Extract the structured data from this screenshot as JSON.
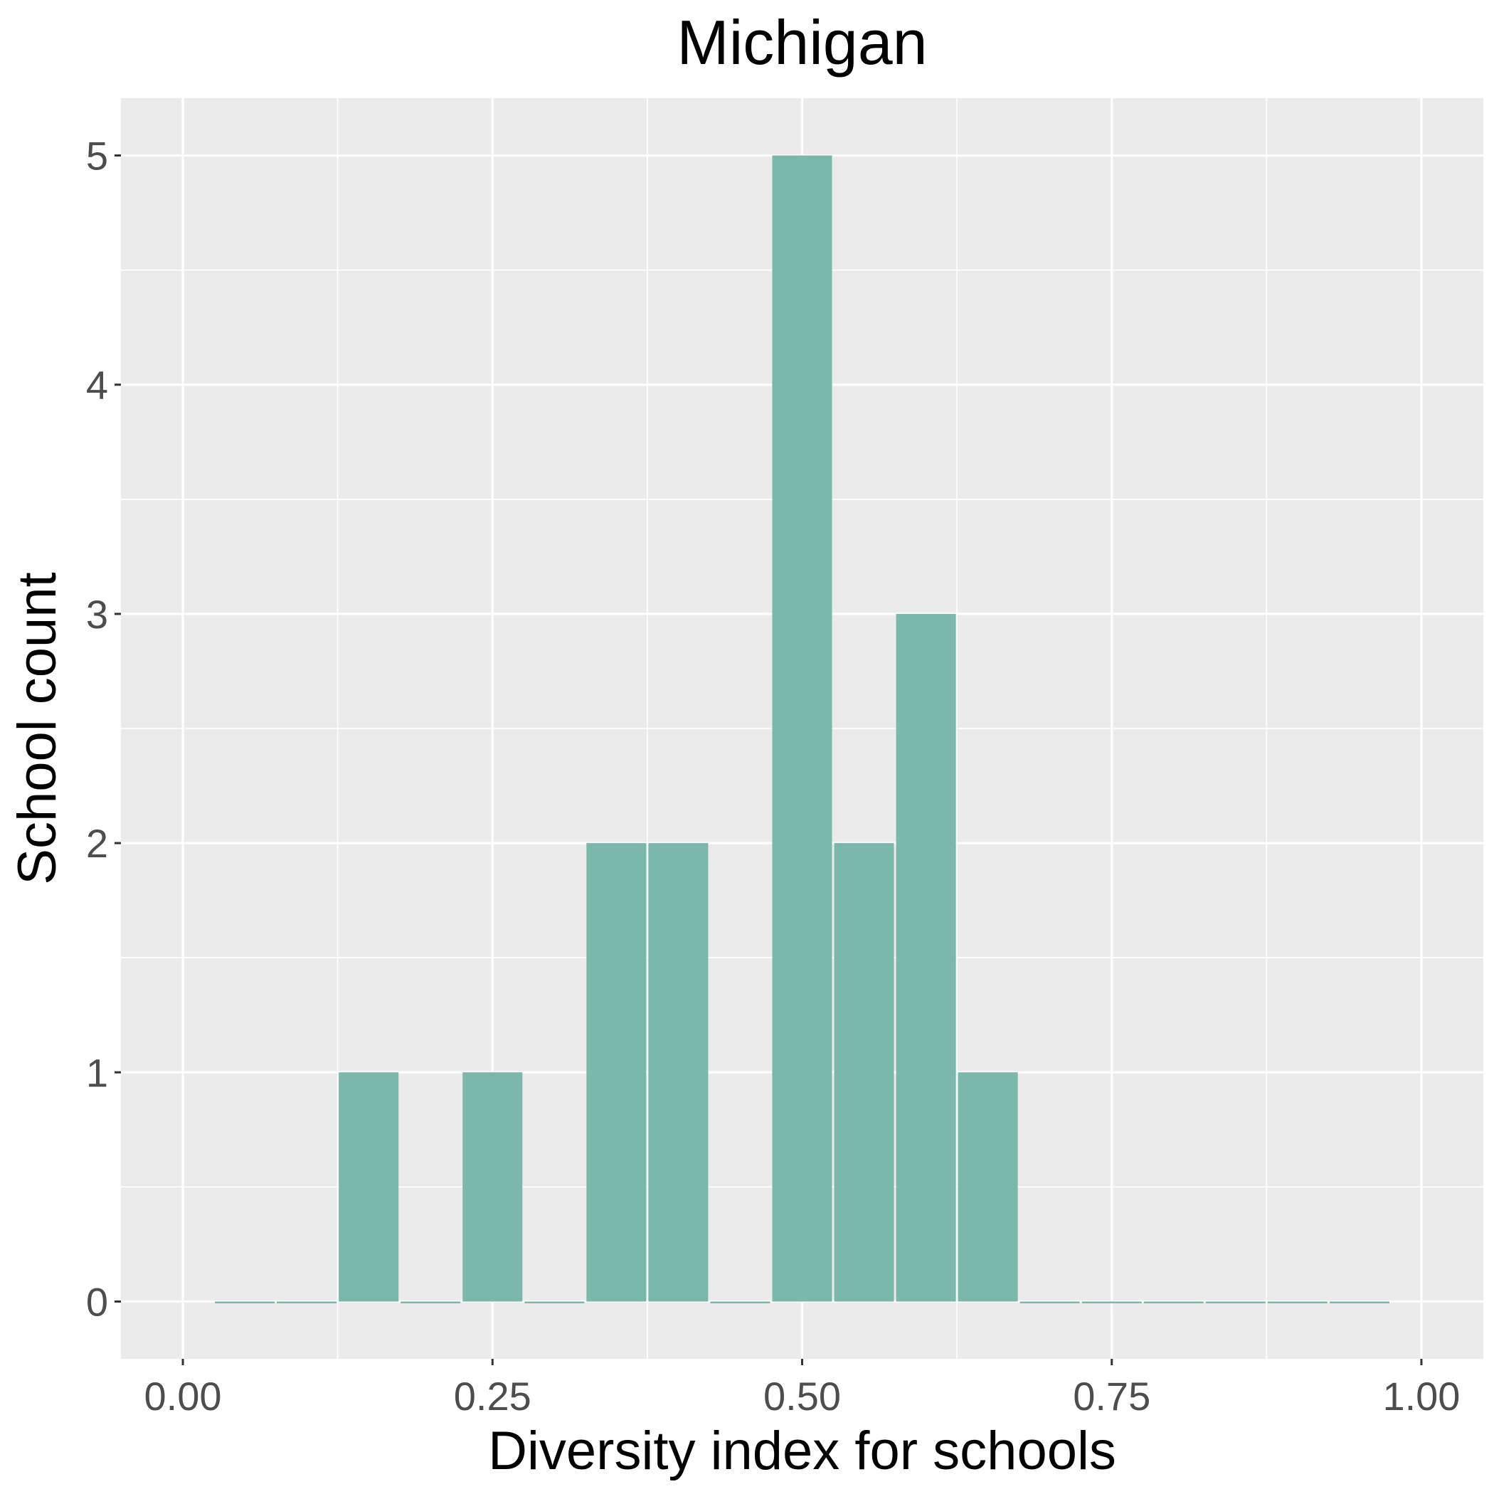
{
  "chart_data": {
    "type": "bar",
    "title": "Michigan",
    "xlabel": "Diversity index for schools",
    "ylabel": "School count",
    "xlim": [
      -0.05,
      1.05
    ],
    "ylim": [
      -0.25,
      5.25
    ],
    "x_ticks": [
      0,
      0.25,
      0.5,
      0.75,
      1
    ],
    "x_tick_labels": [
      "0.00",
      "0.25",
      "0.50",
      "0.75",
      "1.00"
    ],
    "y_ticks": [
      0,
      1,
      2,
      3,
      4,
      5
    ],
    "y_tick_labels": [
      "0",
      "1",
      "2",
      "3",
      "4",
      "5"
    ],
    "bin_width": 0.05,
    "bins": [
      {
        "x": 0.05,
        "count": 0
      },
      {
        "x": 0.1,
        "count": 0
      },
      {
        "x": 0.15,
        "count": 1
      },
      {
        "x": 0.2,
        "count": 0
      },
      {
        "x": 0.25,
        "count": 1
      },
      {
        "x": 0.3,
        "count": 0
      },
      {
        "x": 0.35,
        "count": 2
      },
      {
        "x": 0.4,
        "count": 2
      },
      {
        "x": 0.45,
        "count": 0
      },
      {
        "x": 0.5,
        "count": 5
      },
      {
        "x": 0.55,
        "count": 2
      },
      {
        "x": 0.6,
        "count": 3
      },
      {
        "x": 0.65,
        "count": 1
      },
      {
        "x": 0.7,
        "count": 0
      },
      {
        "x": 0.75,
        "count": 0
      },
      {
        "x": 0.8,
        "count": 0
      },
      {
        "x": 0.85,
        "count": 0
      },
      {
        "x": 0.9,
        "count": 0
      },
      {
        "x": 0.95,
        "count": 0
      }
    ],
    "grid": true,
    "colors": {
      "bar": "#7ab8ab",
      "panel": "#ebebeb",
      "grid": "#ffffff",
      "tick_text": "#4d4d4d",
      "title_text": "#000000"
    }
  }
}
